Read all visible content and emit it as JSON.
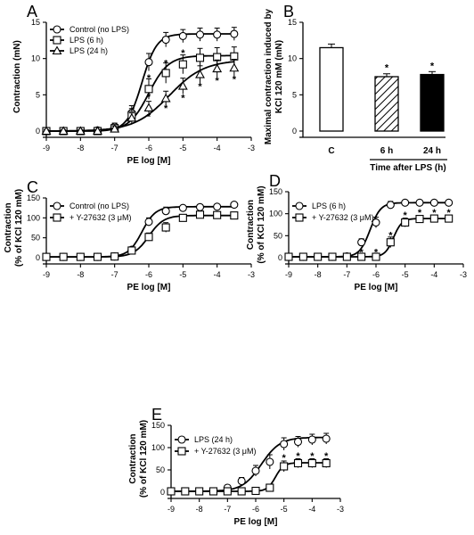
{
  "chart_data": [
    {
      "id": "A",
      "type": "line",
      "panel_label": "A",
      "xlabel": "PE log [M]",
      "ylabel": "Contraction (mN)",
      "xlim": [
        -9,
        -3
      ],
      "ylim": [
        0,
        15
      ],
      "x_ticks": [
        -9,
        -8,
        -7,
        -6,
        -5,
        -4,
        -3
      ],
      "y_ticks": [
        0,
        5,
        10,
        15
      ],
      "x_tick_labels": [
        "-9",
        "-8",
        "-7",
        "-6",
        "-5",
        "-4",
        "-3"
      ],
      "y_tick_labels": [
        "0",
        "5",
        "10",
        "15"
      ],
      "legend_position": "top-left",
      "x": [
        -9,
        -8.5,
        -8,
        -7.5,
        -7,
        -6.5,
        -6,
        -5.5,
        -5,
        -4.5,
        -4,
        -3.5
      ],
      "series": [
        {
          "name": "Control (no LPS)",
          "marker": "circle",
          "values": [
            0,
            0,
            0,
            0.1,
            0.6,
            2.5,
            9.5,
            12.6,
            13.1,
            13.3,
            13.3,
            13.4
          ],
          "errors": [
            0.2,
            0.2,
            0.2,
            0.3,
            0.5,
            1.0,
            1.2,
            1.0,
            0.9,
            0.9,
            0.9,
            0.9
          ],
          "curve": {
            "bottom": 0,
            "top": 13.4,
            "ec50_log": -6.2,
            "hill": 2.0
          }
        },
        {
          "name": "LPS (6 h)",
          "marker": "square",
          "values": [
            0,
            0,
            0,
            0,
            0.4,
            2.2,
            5.8,
            8.0,
            9.2,
            10.1,
            10.2,
            10.3
          ],
          "errors": [
            0.2,
            0.2,
            0.2,
            0.2,
            0.4,
            0.9,
            1.4,
            1.4,
            1.3,
            1.3,
            1.3,
            1.3
          ],
          "curve": {
            "bottom": 0,
            "top": 10.4,
            "ec50_log": -6.0,
            "hill": 1.5
          }
        },
        {
          "name": "LPS (24 h)",
          "marker": "triangle",
          "values": [
            0,
            0,
            0,
            0,
            0.3,
            1.8,
            3.2,
            4.5,
            6.2,
            7.8,
            8.6,
            8.7
          ],
          "errors": [
            0.2,
            0.2,
            0.2,
            0.2,
            0.4,
            0.7,
            0.9,
            1.0,
            1.1,
            1.2,
            1.2,
            1.2
          ],
          "curve": {
            "bottom": 0,
            "top": 9.8,
            "ec50_log": -5.4,
            "hill": 0.85
          }
        }
      ],
      "annotations": [
        {
          "text": "*",
          "x": -6.0,
          "y": 7.4
        },
        {
          "text": "*",
          "x": -6.0,
          "y": 4.8
        },
        {
          "text": "*",
          "x": -6.0,
          "y": 2.0
        },
        {
          "text": "*",
          "x": -5.5,
          "y": 9.4
        },
        {
          "text": "*",
          "x": -5.5,
          "y": 3.2
        },
        {
          "text": "*",
          "x": -5.0,
          "y": 10.8
        },
        {
          "text": "*",
          "x": -5.0,
          "y": 4.6
        },
        {
          "text": "*",
          "x": -4.5,
          "y": 6.2
        },
        {
          "text": "*",
          "x": -4.0,
          "y": 7.0
        },
        {
          "text": "*",
          "x": -3.5,
          "y": 7.2
        }
      ]
    },
    {
      "id": "B",
      "type": "bar",
      "panel_label": "B",
      "ylabel": "Maximal contraction induced by KCl 120 mM (mN)",
      "ylabel_lines": [
        "Maximal contraction induced by",
        "KCl 120 mM (mN)"
      ],
      "xlabel": "Time after LPS (h)",
      "ylim": [
        0,
        15
      ],
      "y_ticks": [
        0,
        5,
        10,
        15
      ],
      "y_tick_labels": [
        "0",
        "5",
        "10",
        "15"
      ],
      "categories": [
        "C",
        "6 h",
        "24 h"
      ],
      "values": [
        11.5,
        7.5,
        7.8
      ],
      "errors": [
        0.5,
        0.4,
        0.4
      ],
      "fills": [
        "white",
        "hatched",
        "black"
      ],
      "annotations": [
        {
          "text": "*",
          "category": "6 h"
        },
        {
          "text": "*",
          "category": "24 h"
        }
      ]
    },
    {
      "id": "C",
      "type": "line",
      "panel_label": "C",
      "xlabel": "PE log [M]",
      "ylabel": "Contraction (% of KCl 120 mM)",
      "ylabel_lines": [
        "Contraction",
        "(% of KCl 120 mM)"
      ],
      "xlim": [
        -9,
        -3
      ],
      "ylim": [
        0,
        150
      ],
      "x_ticks": [
        -9,
        -8,
        -7,
        -6,
        -5,
        -4,
        -3
      ],
      "y_ticks": [
        0,
        50,
        100,
        150
      ],
      "x_tick_labels": [
        "-9",
        "-8",
        "-7",
        "-6",
        "-5",
        "-4",
        "-3"
      ],
      "y_tick_labels": [
        "0",
        "50",
        "100",
        "150"
      ],
      "legend_position": "top-left",
      "x": [
        -9,
        -8.5,
        -8,
        -7.5,
        -7,
        -6.5,
        -6,
        -5.5,
        -5,
        -4.5,
        -4,
        -3.5
      ],
      "series": [
        {
          "name": "Control (no LPS)",
          "marker": "circle",
          "values": [
            2,
            2,
            2,
            2,
            3,
            20,
            90,
            117,
            125,
            127,
            128,
            133
          ],
          "errors": [
            2,
            2,
            2,
            2,
            3,
            5,
            10,
            10,
            6,
            5,
            5,
            5
          ],
          "curve": {
            "bottom": 2,
            "top": 128,
            "ec50_log": -6.2,
            "hill": 2.2
          }
        },
        {
          "name": "+ Y-27632 (3 μM)",
          "marker": "square",
          "values": [
            2,
            2,
            2,
            2,
            3,
            18,
            52,
            76,
            100,
            108,
            107,
            106
          ],
          "errors": [
            2,
            2,
            2,
            2,
            3,
            5,
            10,
            12,
            8,
            7,
            7,
            7
          ],
          "curve": {
            "bottom": 2,
            "top": 106,
            "ec50_log": -6.0,
            "hill": 2.0
          }
        }
      ],
      "annotations": []
    },
    {
      "id": "D",
      "type": "line",
      "panel_label": "D",
      "xlabel": "PE log [M]",
      "ylabel": "Contraction (% of KCl 120 mM)",
      "ylabel_lines": [
        "Contraction",
        "(% of KCl 120 mM)"
      ],
      "xlim": [
        -9,
        -3
      ],
      "ylim": [
        0,
        150
      ],
      "x_ticks": [
        -9,
        -8,
        -7,
        -6,
        -5,
        -4,
        -3
      ],
      "y_ticks": [
        0,
        50,
        100,
        150
      ],
      "x_tick_labels": [
        "-9",
        "-8",
        "-7",
        "-6",
        "-5",
        "-4",
        "-3"
      ],
      "y_tick_labels": [
        "0",
        "50",
        "100",
        "150"
      ],
      "legend_position": "top-left",
      "x": [
        -9,
        -8.5,
        -8,
        -7.5,
        -7,
        -6.5,
        -6,
        -5.5,
        -5,
        -4.5,
        -4,
        -3.5
      ],
      "series": [
        {
          "name": "LPS (6 h)",
          "marker": "circle",
          "values": [
            2,
            2,
            2,
            2,
            3,
            35,
            80,
            120,
            125,
            125,
            125,
            125
          ],
          "errors": [
            2,
            2,
            2,
            2,
            3,
            8,
            12,
            8,
            4,
            4,
            4,
            4
          ],
          "curve": {
            "bottom": 2,
            "top": 125,
            "ec50_log": -6.2,
            "hill": 2.4
          }
        },
        {
          "name": "+ Y-27632 (3 μM)",
          "marker": "square",
          "values": [
            2,
            2,
            2,
            2,
            2,
            2,
            2,
            35,
            80,
            88,
            89,
            89
          ],
          "errors": [
            2,
            2,
            2,
            2,
            2,
            2,
            2,
            12,
            10,
            6,
            6,
            6
          ],
          "curve": {
            "bottom": 2,
            "top": 89,
            "ec50_log": -5.4,
            "hill": 3.0
          }
        }
      ],
      "annotations": [
        {
          "text": "*",
          "x": -6.5,
          "y": 13
        },
        {
          "text": "*",
          "x": -6.0,
          "y": 13
        },
        {
          "text": "*",
          "x": -5.5,
          "y": 52
        },
        {
          "text": "*",
          "x": -5.0,
          "y": 97
        },
        {
          "text": "*",
          "x": -4.5,
          "y": 103
        },
        {
          "text": "*",
          "x": -4.0,
          "y": 103
        },
        {
          "text": "*",
          "x": -3.5,
          "y": 103
        }
      ]
    },
    {
      "id": "E",
      "type": "line",
      "panel_label": "E",
      "xlabel": "PE log [M]",
      "ylabel": "Contraction (% of KCl 120 mM)",
      "ylabel_lines": [
        "Contraction",
        "(% of KCl 120 mM)"
      ],
      "xlim": [
        -9,
        -3
      ],
      "ylim": [
        0,
        150
      ],
      "x_ticks": [
        -9,
        -8,
        -7,
        -6,
        -5,
        -4,
        -3
      ],
      "y_ticks": [
        0,
        50,
        100,
        150
      ],
      "x_tick_labels": [
        "-9",
        "-8",
        "-7",
        "-6",
        "-5",
        "-4",
        "-3"
      ],
      "y_tick_labels": [
        "0",
        "50",
        "100",
        "150"
      ],
      "legend_position": "top-left",
      "x": [
        -9,
        -8.5,
        -8,
        -7.5,
        -7,
        -6.5,
        -6,
        -5.5,
        -5,
        -4.5,
        -4,
        -3.5
      ],
      "series": [
        {
          "name": "LPS (24 h)",
          "marker": "circle",
          "values": [
            2,
            2,
            2,
            2,
            10,
            25,
            48,
            68,
            108,
            113,
            118,
            120
          ],
          "errors": [
            2,
            2,
            2,
            2,
            4,
            8,
            12,
            16,
            14,
            12,
            12,
            12
          ],
          "curve": {
            "bottom": 2,
            "top": 123,
            "ec50_log": -5.8,
            "hill": 1.3
          }
        },
        {
          "name": "+ Y-27632 (3 μM)",
          "marker": "square",
          "values": [
            2,
            2,
            2,
            2,
            2,
            2,
            3,
            10,
            58,
            65,
            65,
            65
          ],
          "errors": [
            2,
            2,
            2,
            2,
            2,
            2,
            3,
            8,
            12,
            10,
            10,
            10
          ],
          "curve": {
            "bottom": 2,
            "top": 66,
            "ec50_log": -5.3,
            "hill": 3.0
          }
        }
      ],
      "annotations": [
        {
          "text": "*",
          "x": -5.0,
          "y": 78
        },
        {
          "text": "*",
          "x": -4.5,
          "y": 82
        },
        {
          "text": "*",
          "x": -4.0,
          "y": 82
        },
        {
          "text": "*",
          "x": -3.5,
          "y": 82
        }
      ]
    }
  ]
}
